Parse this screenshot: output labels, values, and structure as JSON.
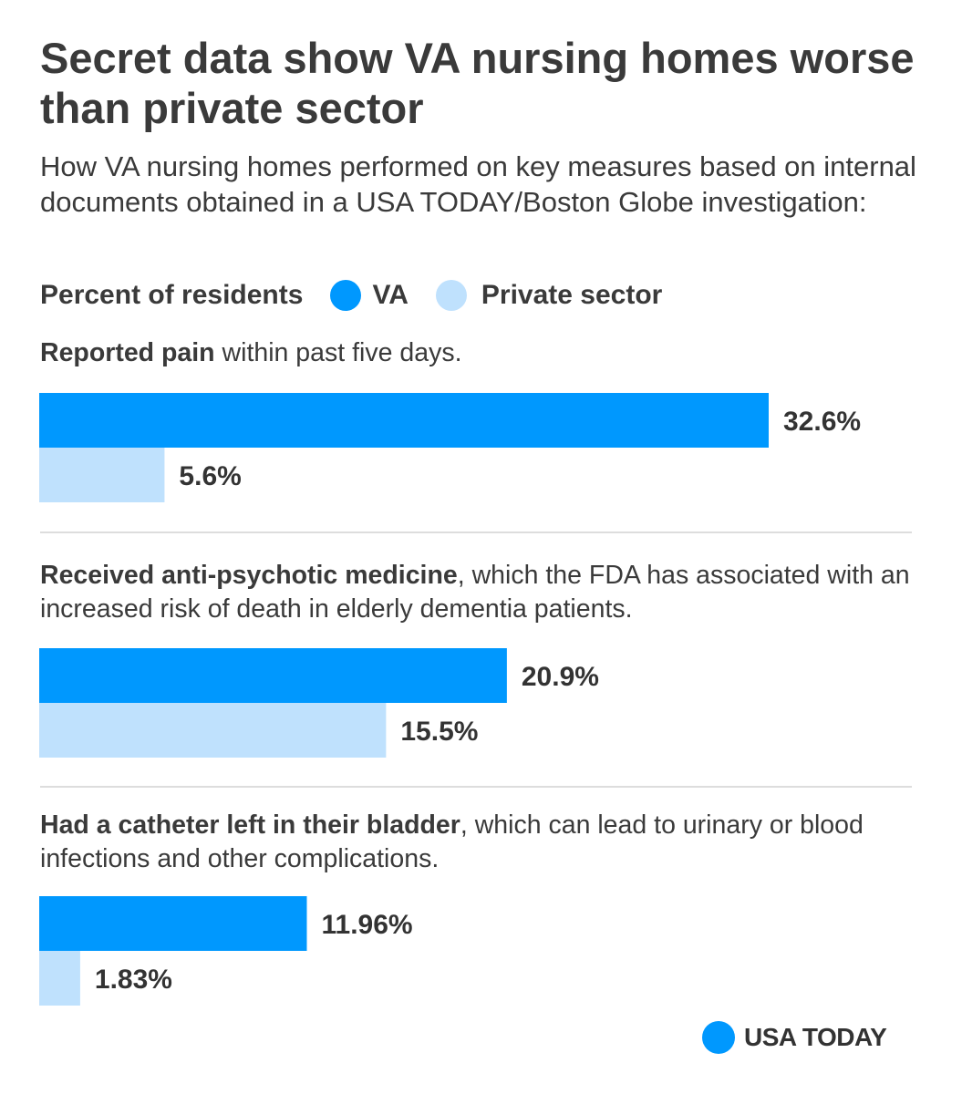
{
  "header": {
    "title": "Secret data show VA nursing homes worse than private sector",
    "subtitle": "How VA nursing homes performed on key measures based on internal documents obtained in a USA TODAY/Boston Globe investigation:"
  },
  "legend": {
    "lead": "Percent of residents",
    "va_label": "VA",
    "private_label": "Private sector"
  },
  "colors": {
    "va": "#0098fe",
    "private": "#bfe1fd",
    "divider": "#dddddd",
    "text": "#333333"
  },
  "chart_data": {
    "type": "bar",
    "orientation": "horizontal",
    "unit": "%",
    "series_names": [
      "VA",
      "Private sector"
    ],
    "panels": [
      {
        "bold_label": "Reported pain",
        "rest_label": " within past five days.",
        "values": [
          32.6,
          5.6
        ],
        "labels": [
          "32.6%",
          "5.6%"
        ]
      },
      {
        "bold_label": "Received anti-psychotic medicine",
        "rest_label": ", which the FDA has associated with an increased risk of death in elderly dementia patients.",
        "values": [
          20.9,
          15.5
        ],
        "labels": [
          "20.9%",
          "15.5%"
        ]
      },
      {
        "bold_label": "Had a catheter left in their bladder",
        "rest_label": ", which can lead to urinary or blood infections and other complications.",
        "values": [
          11.96,
          1.83
        ],
        "labels": [
          "11.96%",
          "1.83%"
        ]
      }
    ]
  },
  "footer": {
    "brand": "USA TODAY"
  }
}
